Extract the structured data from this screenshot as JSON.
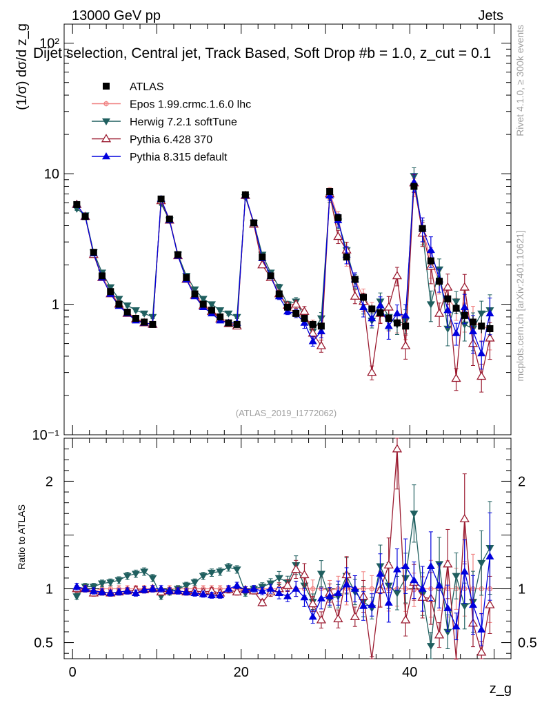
{
  "header": {
    "energy": "13000 GeV pp",
    "category": "Jets"
  },
  "side": {
    "rivet": "Rivet 4.1.0, ≥ 300k events",
    "source": "mcplots.cern.ch [arXiv:2401.10621]"
  },
  "chart_data": {
    "type": "line",
    "title": "Dijet selection, Central jet, Track Based, Soft Drop #b = 1.0, z_cut = 0.1",
    "xlabel": "z_g",
    "ylabel": "(1/σ) dσ/d z_g",
    "ratio_ylabel": "Ratio to ATLAS",
    "watermark": "(ATLAS_2019_I1772062)",
    "yscale": "log",
    "xlim": [
      -1,
      52
    ],
    "ylim": [
      0.1,
      140
    ],
    "ratio_ylim": [
      0.35,
      2.4
    ],
    "x_ticks": [
      "0",
      "20",
      "40"
    ],
    "y_ticks": [
      "10⁻¹",
      "1",
      "10",
      "10²"
    ],
    "ratio_ticks": [
      "0.5",
      "1",
      "2"
    ],
    "x": [
      0.5,
      1.5,
      2.5,
      3.5,
      4.5,
      5.5,
      6.5,
      7.5,
      8.5,
      9.5,
      10.5,
      11.5,
      12.5,
      13.5,
      14.5,
      15.5,
      16.5,
      17.5,
      18.5,
      19.5,
      20.5,
      21.5,
      22.5,
      23.5,
      24.5,
      25.5,
      26.5,
      27.5,
      28.5,
      29.5,
      30.5,
      31.5,
      32.5,
      33.5,
      34.5,
      35.5,
      36.5,
      37.5,
      38.5,
      39.5,
      40.5,
      41.5,
      42.5,
      43.5,
      44.5,
      45.5,
      46.5,
      47.5,
      48.5,
      49.5
    ],
    "series": [
      {
        "name": "ATLAS",
        "color": "#000000",
        "marker": "square-filled",
        "values": [
          5.8,
          4.7,
          2.5,
          1.65,
          1.25,
          1.0,
          0.87,
          0.78,
          0.73,
          0.7,
          6.4,
          4.5,
          2.4,
          1.6,
          1.2,
          1.0,
          0.9,
          0.8,
          0.72,
          0.7,
          6.9,
          4.2,
          2.3,
          1.65,
          1.2,
          0.95,
          0.85,
          0.78,
          0.7,
          0.68,
          7.3,
          4.6,
          2.3,
          1.55,
          1.13,
          0.92,
          0.86,
          0.78,
          0.72,
          0.68,
          8.0,
          3.8,
          2.15,
          1.5,
          1.1,
          0.93,
          0.82,
          0.73,
          0.68,
          0.65
        ],
        "errors": [
          0.2,
          0.15,
          0.1,
          0.07,
          0.05,
          0.04,
          0.04,
          0.04,
          0.04,
          0.04,
          0.2,
          0.15,
          0.1,
          0.07,
          0.06,
          0.05,
          0.05,
          0.04,
          0.04,
          0.04,
          0.2,
          0.15,
          0.1,
          0.08,
          0.07,
          0.06,
          0.06,
          0.05,
          0.05,
          0.05,
          0.25,
          0.18,
          0.12,
          0.1,
          0.08,
          0.07,
          0.07,
          0.06,
          0.06,
          0.06,
          0.3,
          0.2,
          0.15,
          0.12,
          0.1,
          0.09,
          0.09,
          0.08,
          0.08,
          0.08
        ]
      },
      {
        "name": "Epos 1.99.crmc.1.6.0 lhc",
        "color": "#f08080",
        "marker": "plus-open",
        "values": [
          5.7,
          4.7,
          2.45,
          1.65,
          1.25,
          1.0,
          0.87,
          0.78,
          0.73,
          0.7,
          6.3,
          4.5,
          2.4,
          1.6,
          1.2,
          1.0,
          0.9,
          0.8,
          0.72,
          0.7,
          6.8,
          4.2,
          2.3,
          1.65,
          1.2,
          0.95,
          0.85,
          0.78,
          0.7,
          0.68,
          7.2,
          4.6,
          2.3,
          1.55,
          1.13,
          0.92,
          0.86,
          0.78,
          0.72,
          0.68,
          7.9,
          3.8,
          2.15,
          1.5,
          1.1,
          0.93,
          0.82,
          0.73,
          0.68,
          0.65
        ],
        "ratio": [
          0.98,
          1,
          0.98,
          1,
          1,
          1,
          1,
          1,
          1,
          1,
          0.98,
          1,
          1,
          1,
          1,
          1,
          1,
          1,
          1,
          1,
          0.99,
          1,
          1,
          1,
          1,
          1,
          1,
          1,
          1,
          1,
          0.99,
          1,
          1,
          1,
          1,
          1,
          1,
          1,
          1,
          1,
          0.99,
          1,
          1,
          1,
          1,
          1,
          1,
          1,
          1,
          1
        ]
      },
      {
        "name": "Herwig 7.2.1 softTune",
        "color": "#1f5f5f",
        "marker": "triangle-down-filled",
        "values": [
          5.4,
          4.8,
          2.5,
          1.75,
          1.35,
          1.1,
          0.98,
          0.9,
          0.85,
          0.8,
          5.9,
          4.4,
          2.4,
          1.65,
          1.3,
          1.1,
          1.0,
          0.9,
          0.85,
          0.8,
          6.6,
          4.2,
          2.4,
          1.75,
          1.35,
          1.0,
          1.05,
          0.8,
          0.62,
          0.78,
          6.6,
          4.3,
          2.6,
          1.5,
          1.0,
          0.75,
          1.05,
          0.8,
          0.7,
          0.75,
          9.6,
          3.6,
          1.0,
          1.85,
          0.65,
          1.05,
          0.7,
          0.65,
          0.85,
          0.9
        ],
        "ratio": [
          0.93,
          1.02,
          1.02,
          1.05,
          1.06,
          1.08,
          1.12,
          1.14,
          1.16,
          1.1,
          0.93,
          0.97,
          1,
          1.03,
          1.06,
          1.12,
          1.15,
          1.16,
          1.2,
          1.18,
          0.96,
          1,
          1.02,
          1.05,
          1.1,
          1.06,
          1.22,
          1.03,
          0.88,
          1.14,
          0.91,
          0.93,
          1.12,
          0.97,
          0.88,
          0.82,
          1.21,
          1.03,
          0.96,
          1.1,
          1.7,
          0.95,
          0.47,
          1.23,
          0.6,
          1.12,
          0.84,
          0.88,
          1.24,
          1.38
        ]
      },
      {
        "name": "Pythia 6.428 370",
        "color": "#9b1b30",
        "marker": "triangle-up-open",
        "values": [
          5.8,
          4.7,
          2.4,
          1.6,
          1.2,
          1.0,
          0.85,
          0.77,
          0.72,
          0.7,
          6.2,
          4.4,
          2.35,
          1.55,
          1.17,
          0.97,
          0.88,
          0.77,
          0.71,
          0.68,
          6.8,
          4.1,
          2.0,
          1.6,
          1.2,
          0.98,
          1.0,
          0.88,
          0.6,
          0.48,
          7.0,
          3.3,
          2.6,
          1.15,
          1.05,
          0.3,
          0.85,
          0.95,
          1.65,
          0.48,
          8.5,
          3.5,
          1.95,
          0.85,
          1.35,
          0.27,
          1.35,
          0.5,
          0.28,
          0.55
        ],
        "ratio": [
          1.0,
          1.0,
          0.96,
          0.97,
          0.96,
          0.97,
          0.98,
          0.99,
          0.99,
          1.0,
          0.97,
          0.98,
          0.98,
          0.97,
          0.98,
          0.97,
          0.98,
          0.96,
          0.99,
          0.97,
          0.99,
          0.98,
          0.87,
          0.97,
          1.0,
          1.03,
          1.18,
          1.13,
          0.86,
          0.71,
          0.96,
          0.72,
          1.13,
          0.74,
          0.93,
          0.33,
          0.99,
          1.22,
          2.3,
          0.71,
          1.06,
          0.92,
          0.91,
          0.57,
          1.23,
          0.29,
          1.65,
          0.68,
          0.41,
          0.85
        ]
      },
      {
        "name": "Pythia 8.315 default",
        "color": "#0000dd",
        "marker": "triangle-up-filled",
        "values": [
          5.8,
          4.7,
          2.45,
          1.6,
          1.2,
          0.97,
          0.85,
          0.75,
          0.72,
          0.7,
          6.4,
          4.4,
          2.35,
          1.55,
          1.15,
          0.95,
          0.85,
          0.75,
          0.72,
          0.72,
          6.8,
          4.2,
          2.25,
          1.65,
          1.15,
          0.88,
          0.85,
          0.72,
          0.52,
          0.62,
          6.8,
          4.4,
          2.4,
          1.55,
          0.95,
          0.78,
          0.98,
          0.68,
          0.85,
          0.82,
          8.6,
          3.8,
          2.6,
          1.55,
          0.9,
          0.6,
          0.95,
          0.62,
          0.42,
          0.85
        ],
        "ratio": [
          1.02,
          1.0,
          0.98,
          0.97,
          0.96,
          0.97,
          0.98,
          0.96,
          0.99,
          1.0,
          1.0,
          0.98,
          0.98,
          0.97,
          0.96,
          0.95,
          0.94,
          0.94,
          1.0,
          1.03,
          0.99,
          1.0,
          0.98,
          1.0,
          0.96,
          0.93,
          1.0,
          0.92,
          0.74,
          0.91,
          0.93,
          0.96,
          1.04,
          1.0,
          0.84,
          0.85,
          1.14,
          0.87,
          1.18,
          1.21,
          1.08,
          1.0,
          1.21,
          1.03,
          0.82,
          0.65,
          1.16,
          0.85,
          0.62,
          1.3
        ]
      }
    ]
  }
}
